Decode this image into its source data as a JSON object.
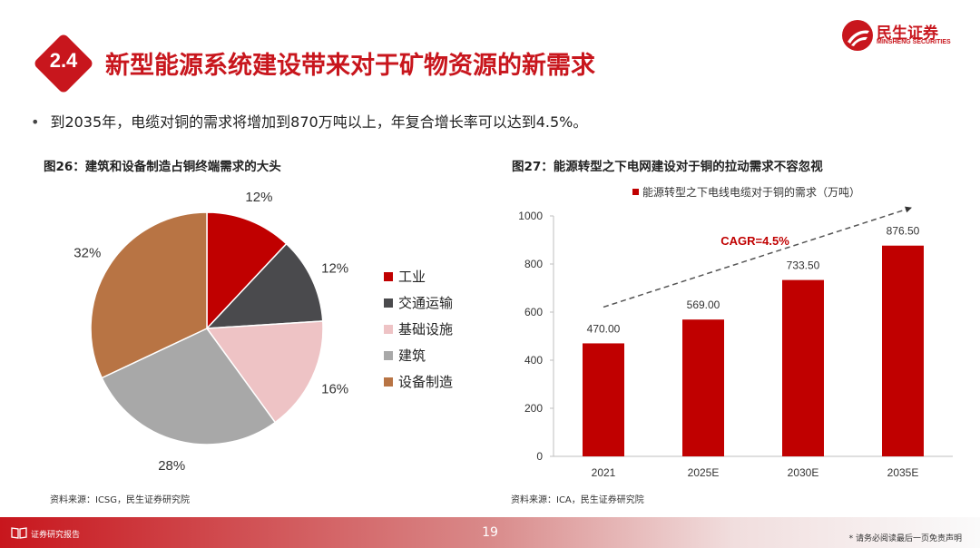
{
  "header": {
    "section_number": "2.4",
    "title": "新型能源系统建设带来对于矿物资源的新需求",
    "logo_cn": "民生证券",
    "logo_en": "MINSHENG SECURITIES"
  },
  "bullet": "到2035年，电缆对铜的需求将增加到870万吨以上，年复合增长率可以达到4.5%。",
  "figure_left": {
    "title": "图26：建筑和设备制造占铜终端需求的大头",
    "source": "资料来源：ICSG，民生证券研究院"
  },
  "figure_right": {
    "title": "图27：能源转型之下电网建设对于铜的拉动需求不容忽视",
    "source": "资料来源：ICA，民生证券研究院"
  },
  "chart_data": [
    {
      "type": "pie",
      "title": "图26：建筑和设备制造占铜终端需求的大头",
      "categories": [
        "工业",
        "交通运输",
        "基础设施",
        "建筑",
        "设备制造"
      ],
      "values": [
        12,
        12,
        16,
        28,
        32
      ],
      "labels": [
        "12%",
        "12%",
        "16%",
        "28%",
        "32%"
      ],
      "colors": [
        "#c00000",
        "#4a4a4d",
        "#eec3c5",
        "#a8a8a8",
        "#b87444"
      ],
      "legend_position": "right"
    },
    {
      "type": "bar",
      "title": "图27：能源转型之下电网建设对于铜的拉动需求不容忽视",
      "series": [
        {
          "name": "能源转型之下电线电缆对于铜的需求（万吨）",
          "values": [
            470.0,
            569.0,
            733.5,
            876.5
          ]
        }
      ],
      "categories": [
        "2021",
        "2025E",
        "2030E",
        "2035E"
      ],
      "value_labels": [
        "470.00",
        "569.00",
        "733.50",
        "876.50"
      ],
      "ylim": [
        0,
        1000
      ],
      "yticks": [
        "0",
        "200",
        "400",
        "600",
        "800",
        "1000"
      ],
      "annotation": "CAGR=4.5%",
      "bar_color": "#c00000",
      "legend_position": "top"
    }
  ],
  "footer": {
    "label": "证券研究报告",
    "page": "19",
    "note": "* 请务必阅读最后一页免责声明"
  }
}
